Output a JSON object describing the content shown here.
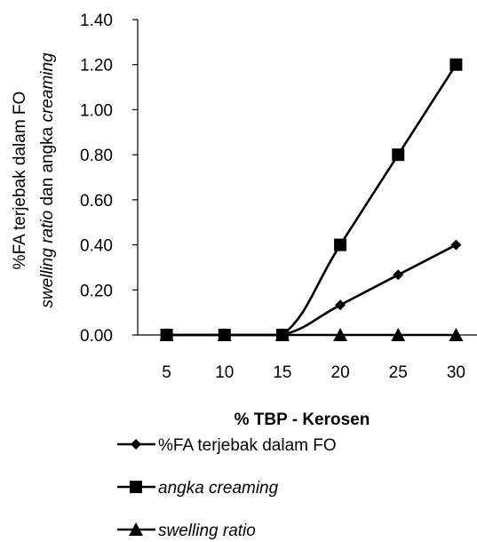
{
  "chart_data": {
    "type": "line",
    "xlabel": "% TBP - Kerosen",
    "ylabel": {
      "line1": "%FA terjebak dalam FO",
      "line2_italic_a": "swelling ratio",
      "line2_plain": " dan angka ",
      "line2_italic_b": "creaming"
    },
    "categories": [
      5,
      10,
      15,
      20,
      25,
      30
    ],
    "ylim": [
      0,
      1.4
    ],
    "y_ticks": [
      "0.00",
      "0.20",
      "0.40",
      "0.60",
      "0.80",
      "1.00",
      "1.20",
      "1.40"
    ],
    "grid": false,
    "legend_position": "bottom",
    "series": [
      {
        "name": "%FA terjebak dalam FO",
        "italic": false,
        "marker": "diamond",
        "values": [
          0,
          0,
          0,
          0.133,
          0.267,
          0.4
        ]
      },
      {
        "name": "angka creaming",
        "italic": true,
        "marker": "square",
        "values": [
          0,
          0,
          0,
          0.4,
          0.8,
          1.2
        ]
      },
      {
        "name": "swelling ratio",
        "italic": true,
        "marker": "triangle",
        "values": [
          0,
          0,
          0,
          0,
          0,
          0
        ]
      }
    ],
    "colors": {
      "line": "#000000",
      "axis": "#000000"
    }
  }
}
